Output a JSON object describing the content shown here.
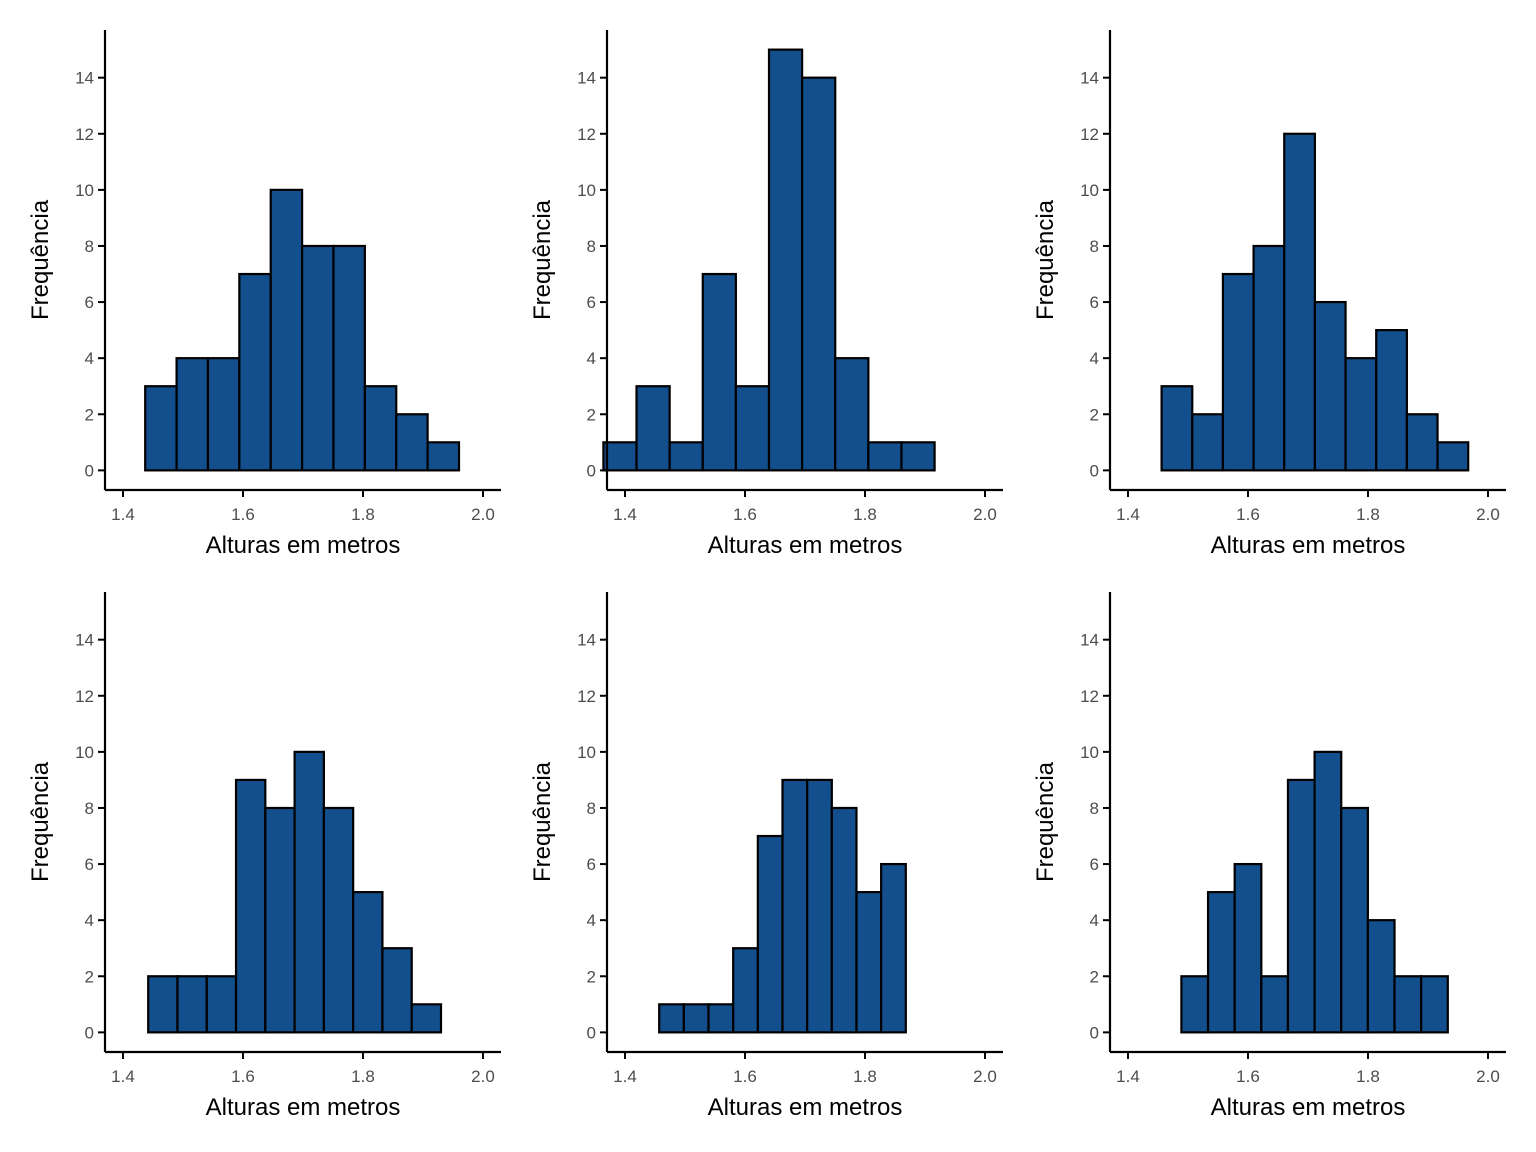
{
  "colors": {
    "bar_fill": "#134f8c",
    "bar_stroke": "#000000",
    "axis": "#000000",
    "tick_text": "#4d4d4d",
    "background": "#ffffff"
  },
  "chart_data": [
    {
      "type": "bar",
      "xlabel": "Alturas em metros",
      "ylabel": "Frequência",
      "xlim": [
        1.37,
        2.03
      ],
      "ylim": [
        -0.7,
        15.7
      ],
      "xticks": [
        1.4,
        1.6,
        1.8,
        2.0
      ],
      "xtick_labels": [
        "1.4",
        "1.6",
        "1.8",
        "2.0"
      ],
      "yticks": [
        0,
        2,
        4,
        6,
        8,
        10,
        12,
        14
      ],
      "ytick_labels": [
        "0",
        "2",
        "4",
        "6",
        "8",
        "10",
        "12",
        "14"
      ],
      "bin_start": 1.437,
      "bin_width": 0.0523,
      "values": [
        3,
        4,
        4,
        7,
        10,
        8,
        8,
        3,
        2,
        1
      ]
    },
    {
      "type": "bar",
      "xlabel": "Alturas em metros",
      "ylabel": "Frequência",
      "xlim": [
        1.37,
        2.03
      ],
      "ylim": [
        -0.7,
        15.7
      ],
      "xticks": [
        1.4,
        1.6,
        1.8,
        2.0
      ],
      "xtick_labels": [
        "1.4",
        "1.6",
        "1.8",
        "2.0"
      ],
      "yticks": [
        0,
        2,
        4,
        6,
        8,
        10,
        12,
        14
      ],
      "ytick_labels": [
        "0",
        "2",
        "4",
        "6",
        "8",
        "10",
        "12",
        "14"
      ],
      "bin_start": 1.364,
      "bin_width": 0.0552,
      "values": [
        1,
        3,
        1,
        7,
        3,
        15,
        14,
        4,
        1,
        1
      ]
    },
    {
      "type": "bar",
      "xlabel": "Alturas em metros",
      "ylabel": "Frequência",
      "xlim": [
        1.37,
        2.03
      ],
      "ylim": [
        -0.7,
        15.7
      ],
      "xticks": [
        1.4,
        1.6,
        1.8,
        2.0
      ],
      "xtick_labels": [
        "1.4",
        "1.6",
        "1.8",
        "2.0"
      ],
      "yticks": [
        0,
        2,
        4,
        6,
        8,
        10,
        12,
        14
      ],
      "ytick_labels": [
        "0",
        "2",
        "4",
        "6",
        "8",
        "10",
        "12",
        "14"
      ],
      "bin_start": 1.456,
      "bin_width": 0.0511,
      "values": [
        3,
        2,
        7,
        8,
        12,
        6,
        4,
        5,
        2,
        1
      ]
    },
    {
      "type": "bar",
      "xlabel": "Alturas em metros",
      "ylabel": "Frequência",
      "xlim": [
        1.37,
        2.03
      ],
      "ylim": [
        -0.7,
        15.7
      ],
      "xticks": [
        1.4,
        1.6,
        1.8,
        2.0
      ],
      "xtick_labels": [
        "1.4",
        "1.6",
        "1.8",
        "2.0"
      ],
      "yticks": [
        0,
        2,
        4,
        6,
        8,
        10,
        12,
        14
      ],
      "ytick_labels": [
        "0",
        "2",
        "4",
        "6",
        "8",
        "10",
        "12",
        "14"
      ],
      "bin_start": 1.442,
      "bin_width": 0.0488,
      "values": [
        2,
        2,
        2,
        9,
        8,
        10,
        8,
        5,
        3,
        1
      ]
    },
    {
      "type": "bar",
      "xlabel": "Alturas em metros",
      "ylabel": "Frequência",
      "xlim": [
        1.37,
        2.03
      ],
      "ylim": [
        -0.7,
        15.7
      ],
      "xticks": [
        1.4,
        1.6,
        1.8,
        2.0
      ],
      "xtick_labels": [
        "1.4",
        "1.6",
        "1.8",
        "2.0"
      ],
      "yticks": [
        0,
        2,
        4,
        6,
        8,
        10,
        12,
        14
      ],
      "ytick_labels": [
        "0",
        "2",
        "4",
        "6",
        "8",
        "10",
        "12",
        "14"
      ],
      "bin_start": 1.457,
      "bin_width": 0.0411,
      "values": [
        1,
        1,
        1,
        3,
        7,
        9,
        9,
        8,
        5,
        6
      ]
    },
    {
      "type": "bar",
      "xlabel": "Alturas em metros",
      "ylabel": "Frequência",
      "xlim": [
        1.37,
        2.03
      ],
      "ylim": [
        -0.7,
        15.7
      ],
      "xticks": [
        1.4,
        1.6,
        1.8,
        2.0
      ],
      "xtick_labels": [
        "1.4",
        "1.6",
        "1.8",
        "2.0"
      ],
      "yticks": [
        0,
        2,
        4,
        6,
        8,
        10,
        12,
        14
      ],
      "ytick_labels": [
        "0",
        "2",
        "4",
        "6",
        "8",
        "10",
        "12",
        "14"
      ],
      "bin_start": 1.489,
      "bin_width": 0.0444,
      "values": [
        2,
        5,
        6,
        2,
        9,
        10,
        8,
        4,
        2,
        2
      ]
    }
  ]
}
